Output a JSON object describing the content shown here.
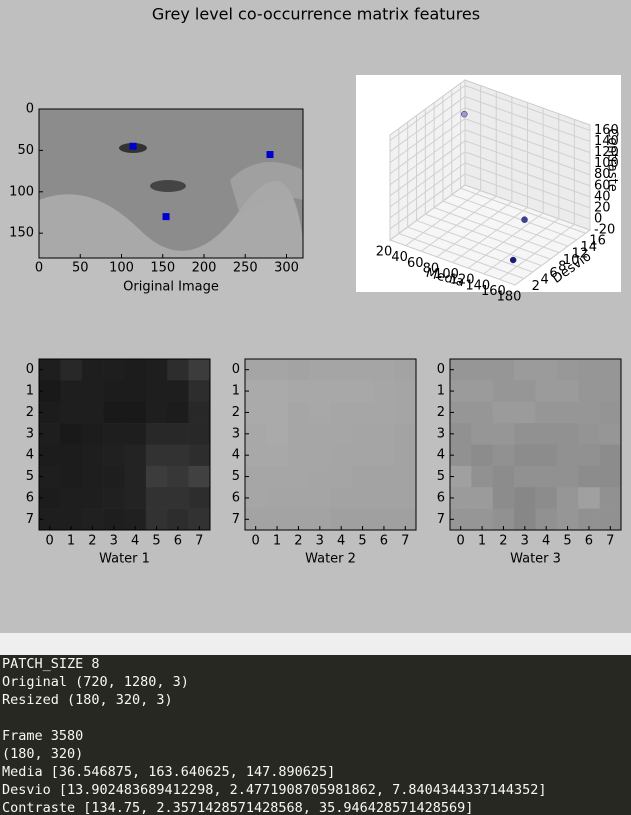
{
  "figure": {
    "title": "Grey level co-occurrence matrix features",
    "image_plot": {
      "xlabel": "Original Image",
      "xlim": [
        0,
        320
      ],
      "ylim": [
        180,
        0
      ],
      "xticks": [
        0,
        50,
        100,
        150,
        200,
        250,
        300
      ],
      "yticks": [
        0,
        50,
        100,
        150
      ],
      "points": {
        "x": [
          114,
          280,
          154
        ],
        "y": [
          45,
          55,
          130
        ]
      },
      "color": "#0000cc"
    },
    "scatter3d": {
      "xlabel": "Media",
      "ylabel": "Desvio",
      "zlabel": "Contraste",
      "xlim": [
        20,
        180
      ],
      "ylim": [
        0,
        17
      ],
      "zlim": [
        -20,
        170
      ],
      "xticks": [
        20,
        40,
        60,
        80,
        100,
        120,
        140,
        160,
        180
      ],
      "yticks": [
        2,
        4,
        6,
        8,
        10,
        12,
        14,
        16
      ],
      "zticks": [
        -20,
        0,
        20,
        40,
        60,
        80,
        100,
        120,
        140,
        160
      ],
      "x": [
        36.546875,
        163.640625,
        147.890625
      ],
      "y": [
        13.902483689412298,
        2.477190870598186,
        7.840434433714435
      ],
      "z": [
        134.75,
        2.3571428571428568,
        35.94642857142857
      ],
      "colors": [
        "#9a9ad6",
        "#1a1a80",
        "#40409c"
      ]
    },
    "patches": [
      {
        "label": "Water 1",
        "xticks": [
          0,
          1,
          2,
          3,
          4,
          5,
          6,
          7
        ],
        "yticks": [
          0,
          1,
          2,
          3,
          4,
          5,
          6,
          7
        ],
        "values": [
          [
            30,
            40,
            30,
            30,
            28,
            30,
            45,
            60
          ],
          [
            25,
            30,
            30,
            28,
            28,
            30,
            30,
            45
          ],
          [
            28,
            30,
            30,
            25,
            25,
            30,
            28,
            40
          ],
          [
            30,
            25,
            28,
            30,
            30,
            40,
            40,
            40
          ],
          [
            28,
            28,
            30,
            32,
            35,
            50,
            50,
            45
          ],
          [
            30,
            28,
            30,
            30,
            35,
            60,
            55,
            65
          ],
          [
            28,
            30,
            30,
            32,
            35,
            50,
            50,
            45
          ],
          [
            30,
            30,
            32,
            30,
            32,
            50,
            45,
            50
          ]
        ]
      },
      {
        "label": "Water 2",
        "xticks": [
          0,
          1,
          2,
          3,
          4,
          5,
          6,
          7
        ],
        "yticks": [
          0,
          1,
          2,
          3,
          4,
          5,
          6,
          7
        ],
        "values": [
          [
            165,
            165,
            163,
            165,
            165,
            165,
            165,
            163
          ],
          [
            170,
            170,
            168,
            168,
            168,
            168,
            166,
            165
          ],
          [
            170,
            170,
            166,
            168,
            166,
            166,
            166,
            165
          ],
          [
            168,
            170,
            166,
            166,
            166,
            165,
            165,
            163
          ],
          [
            168,
            168,
            166,
            166,
            165,
            165,
            165,
            163
          ],
          [
            166,
            166,
            166,
            165,
            165,
            163,
            163,
            163
          ],
          [
            166,
            165,
            165,
            165,
            163,
            163,
            163,
            163
          ],
          [
            163,
            163,
            163,
            163,
            160,
            160,
            160,
            160
          ]
        ]
      },
      {
        "label": "Water 3",
        "xticks": [
          0,
          1,
          2,
          3,
          4,
          5,
          6,
          7
        ],
        "yticks": [
          0,
          1,
          2,
          3,
          4,
          5,
          6,
          7
        ],
        "values": [
          [
            150,
            150,
            150,
            155,
            155,
            152,
            150,
            150
          ],
          [
            155,
            155,
            150,
            150,
            155,
            155,
            150,
            150
          ],
          [
            150,
            150,
            155,
            155,
            150,
            150,
            150,
            148
          ],
          [
            145,
            150,
            150,
            145,
            145,
            145,
            148,
            150
          ],
          [
            145,
            140,
            145,
            140,
            140,
            145,
            145,
            140
          ],
          [
            160,
            145,
            140,
            145,
            145,
            145,
            140,
            140
          ],
          [
            155,
            155,
            140,
            135,
            140,
            150,
            160,
            145
          ],
          [
            150,
            150,
            145,
            135,
            145,
            150,
            145,
            145
          ]
        ]
      }
    ]
  },
  "terminal": {
    "block1": [
      "PATCH_SIZE 8",
      "Original (720, 1280, 3)",
      "Resized (180, 320, 3)"
    ],
    "block2": [
      "Frame 3580",
      "(180, 320)",
      "Media [36.546875, 163.640625, 147.890625]",
      "Desvio [13.902483689412298, 2.4771908705981862, 7.8404344337144352]",
      "Contraste [134.75, 2.3571428571428568, 35.946428571428569]"
    ]
  }
}
